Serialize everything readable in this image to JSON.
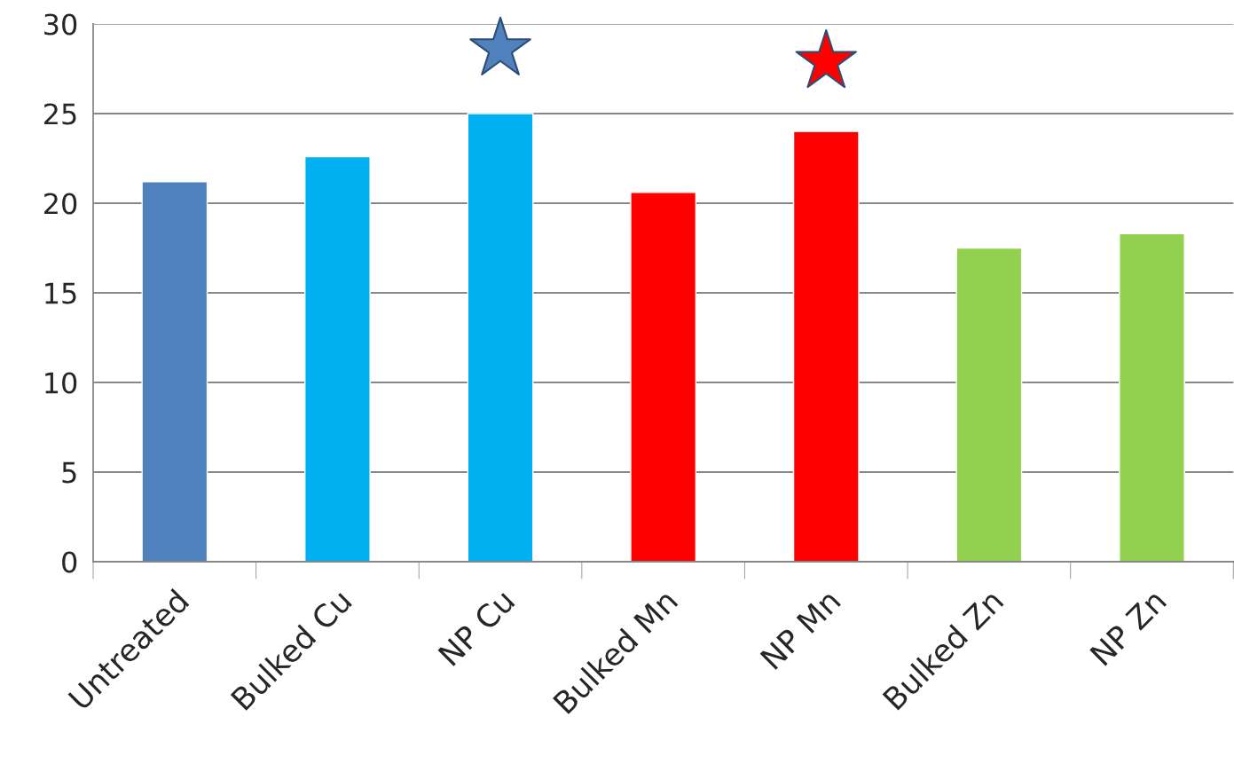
{
  "chart_data": {
    "type": "bar",
    "categories": [
      "Untreated",
      "Bulked Cu",
      "NP Cu",
      "Bulked Mn",
      "NP Mn",
      "Bulked Zn",
      "NP Zn"
    ],
    "series": [
      {
        "values": [
          21.2,
          22.6,
          25.0,
          20.6,
          24.0,
          17.5,
          18.3
        ],
        "colors": [
          "#4f81bd",
          "#00b0f0",
          "#00b0f0",
          "#ff0000",
          "#ff0000",
          "#92d050",
          "#92d050"
        ]
      },
      {
        "type": "scatter",
        "x": [
          "NP Cu"
        ],
        "values": [
          28.6
        ],
        "color": "#4f81bd",
        "marker": "star"
      },
      {
        "type": "scatter",
        "x": [
          "NP Mn"
        ],
        "values": [
          27.9
        ],
        "color": "#ff0000",
        "marker": "star"
      }
    ],
    "ylim": [
      0,
      30
    ],
    "yticks": [
      0,
      5,
      10,
      15,
      20,
      25,
      30
    ],
    "grid": "y"
  }
}
